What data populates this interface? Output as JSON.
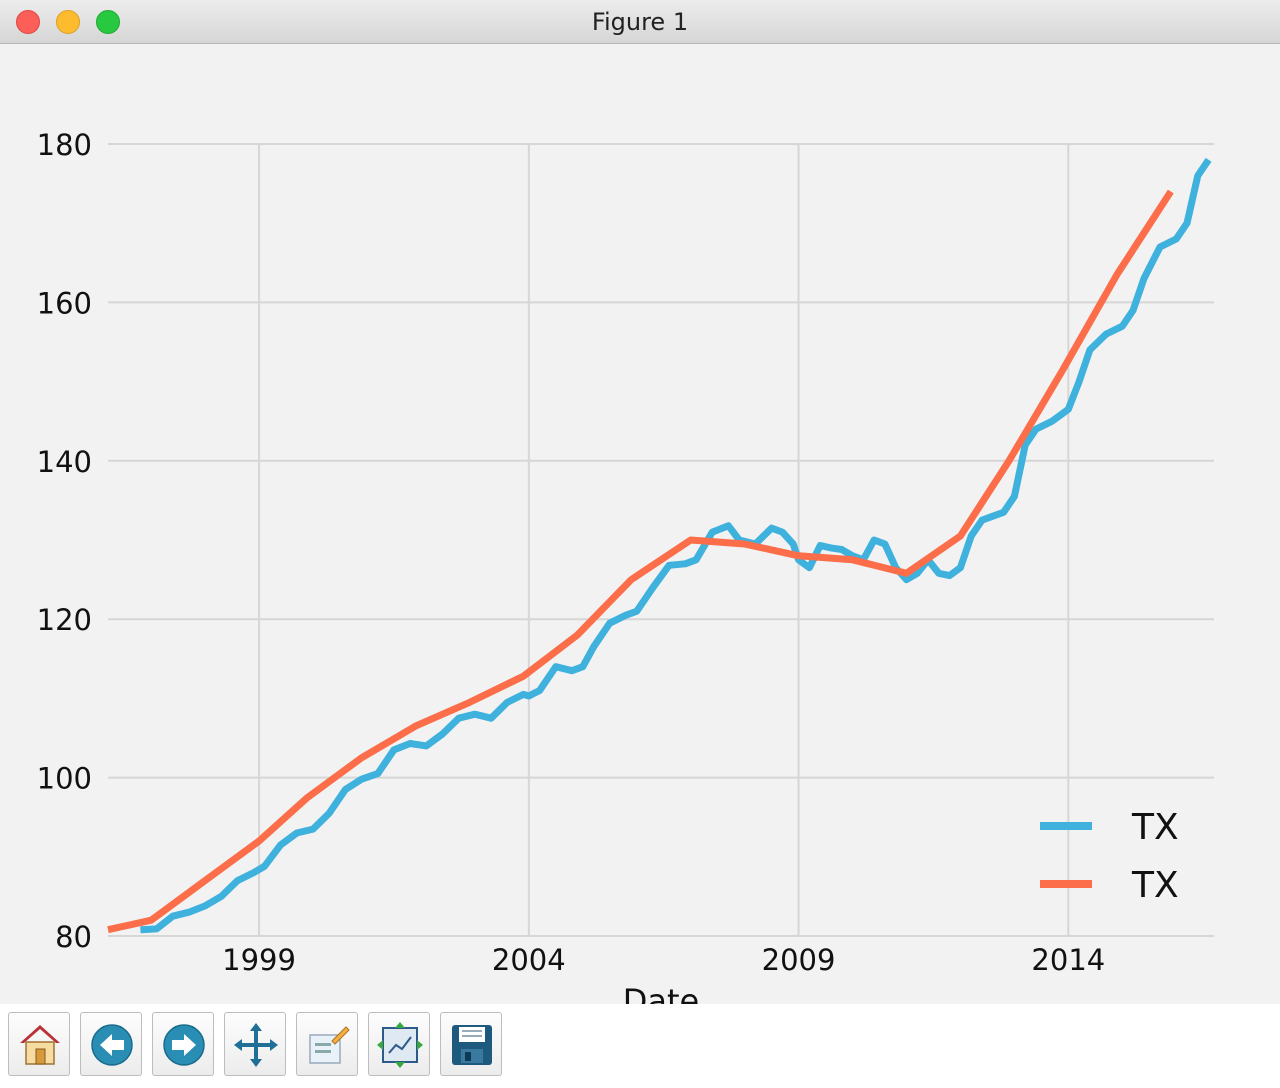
{
  "window": {
    "title": "Figure 1"
  },
  "toolbar": {
    "buttons": [
      {
        "name": "home",
        "icon": "home-icon"
      },
      {
        "name": "back",
        "icon": "back-arrow-icon"
      },
      {
        "name": "forward",
        "icon": "forward-arrow-icon"
      },
      {
        "name": "pan",
        "icon": "move-arrows-icon"
      },
      {
        "name": "zoom",
        "icon": "zoom-rect-icon"
      },
      {
        "name": "subplots",
        "icon": "subplots-config-icon"
      },
      {
        "name": "save",
        "icon": "floppy-disk-icon"
      }
    ]
  },
  "chart_data": {
    "type": "line",
    "title": "",
    "xlabel": "Date",
    "ylabel": "",
    "xlim": [
      1996.2,
      2016.7
    ],
    "ylim": [
      80,
      180
    ],
    "xticks": [
      1999,
      2004,
      2009,
      2014
    ],
    "xtick_labels": [
      "1999",
      "2004",
      "2009",
      "2014"
    ],
    "yticks": [
      80,
      100,
      120,
      140,
      160,
      180
    ],
    "ytick_labels": [
      "80",
      "100",
      "120",
      "140",
      "160",
      "180"
    ],
    "grid": true,
    "legend": {
      "placement": "lower right",
      "entries": [
        "TX",
        "TX"
      ]
    },
    "series": [
      {
        "name": "TX",
        "color": "#3eb1dd",
        "x": [
          1996.8,
          1997.1,
          1997.4,
          1997.7,
          1998.0,
          1998.3,
          1998.6,
          1998.9,
          1999.1,
          1999.4,
          1999.7,
          2000.0,
          2000.3,
          2000.6,
          2000.9,
          2001.2,
          2001.5,
          2001.8,
          2002.1,
          2002.4,
          2002.7,
          2003.0,
          2003.3,
          2003.6,
          2003.9,
          2004.0,
          2004.2,
          2004.5,
          2004.8,
          2005.0,
          2005.2,
          2005.5,
          2005.8,
          2006.0,
          2006.3,
          2006.6,
          2006.9,
          2007.1,
          2007.4,
          2007.7,
          2007.9,
          2008.2,
          2008.5,
          2008.7,
          2008.9,
          2009.0,
          2009.2,
          2009.4,
          2009.6,
          2009.8,
          2010.0,
          2010.2,
          2010.4,
          2010.6,
          2010.8,
          2011.0,
          2011.2,
          2011.4,
          2011.6,
          2011.8,
          2012.0,
          2012.2,
          2012.4,
          2012.6,
          2012.8,
          2013.0,
          2013.2,
          2013.4,
          2013.7,
          2014.0,
          2014.2,
          2014.4,
          2014.7,
          2015.0,
          2015.2,
          2015.4,
          2015.7,
          2016.0,
          2016.2,
          2016.4,
          2016.6
        ],
        "values": [
          80.8,
          80.9,
          82.5,
          83.0,
          83.8,
          85.0,
          87.0,
          88.0,
          88.8,
          91.5,
          93.0,
          93.5,
          95.5,
          98.5,
          99.8,
          100.5,
          103.5,
          104.3,
          104.0,
          105.5,
          107.5,
          108.0,
          107.5,
          109.5,
          110.5,
          110.3,
          111.0,
          114.0,
          113.5,
          114.0,
          116.5,
          119.5,
          120.5,
          121.0,
          124.0,
          126.8,
          127.0,
          127.5,
          131.0,
          131.8,
          130.0,
          129.5,
          131.5,
          131.0,
          129.5,
          127.5,
          126.5,
          129.3,
          129.0,
          128.8,
          128.0,
          127.5,
          130.0,
          129.5,
          126.5,
          125.0,
          125.8,
          127.5,
          125.8,
          125.5,
          126.5,
          130.5,
          132.5,
          133.0,
          133.5,
          135.5,
          142.0,
          144.0,
          145.0,
          146.5,
          150.0,
          154.0,
          156.0,
          157.0,
          159.0,
          163.0,
          167.0,
          168.0,
          170.0,
          176.0,
          178.0
        ]
      },
      {
        "name": "TX",
        "color": "#fc6d4a",
        "x": [
          1996.2,
          1997.0,
          1997.8,
          1998.6,
          1999.0,
          1999.9,
          2000.9,
          2001.9,
          2002.9,
          2003.9,
          2004.9,
          2005.9,
          2007.0,
          2008.0,
          2009.0,
          2010.0,
          2011.0,
          2012.0,
          2012.9,
          2013.9,
          2014.9,
          2015.9
        ],
        "values": [
          80.8,
          82.0,
          86.0,
          90.0,
          92.0,
          97.5,
          102.5,
          106.5,
          109.5,
          112.8,
          118.0,
          125.0,
          130.0,
          129.5,
          128.0,
          127.5,
          125.8,
          130.5,
          140.0,
          151.5,
          163.5,
          174.0
        ]
      }
    ]
  }
}
